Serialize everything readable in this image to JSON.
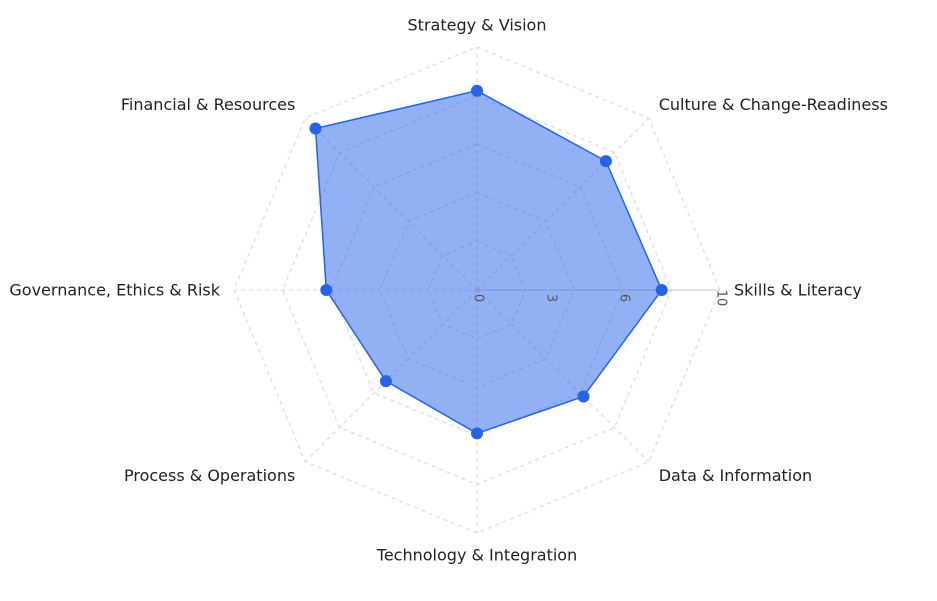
{
  "chart_data": {
    "type": "radar",
    "title": "",
    "axes": [
      "Strategy & Vision",
      "Culture & Change-Readiness",
      "Skills & Literacy",
      "Data & Information",
      "Technology & Integration",
      "Process & Operations",
      "Governance, Ethics & Risk",
      "Financial & Resources"
    ],
    "radial_ticks": [
      "0",
      "3",
      "6",
      "10"
    ],
    "range": [
      0,
      10
    ],
    "grid_levels": [
      0,
      2,
      4,
      6,
      8,
      10
    ],
    "series": [
      {
        "values": [
          8.2,
          7.5,
          7.6,
          6.2,
          5.9,
          5.3,
          6.2,
          9.4
        ],
        "fill_color": "#2563eb",
        "fill_opacity": 0.5,
        "line_color": "#2563eb"
      }
    ],
    "grid": true,
    "grid_color": "#dddddd",
    "legend": false
  }
}
